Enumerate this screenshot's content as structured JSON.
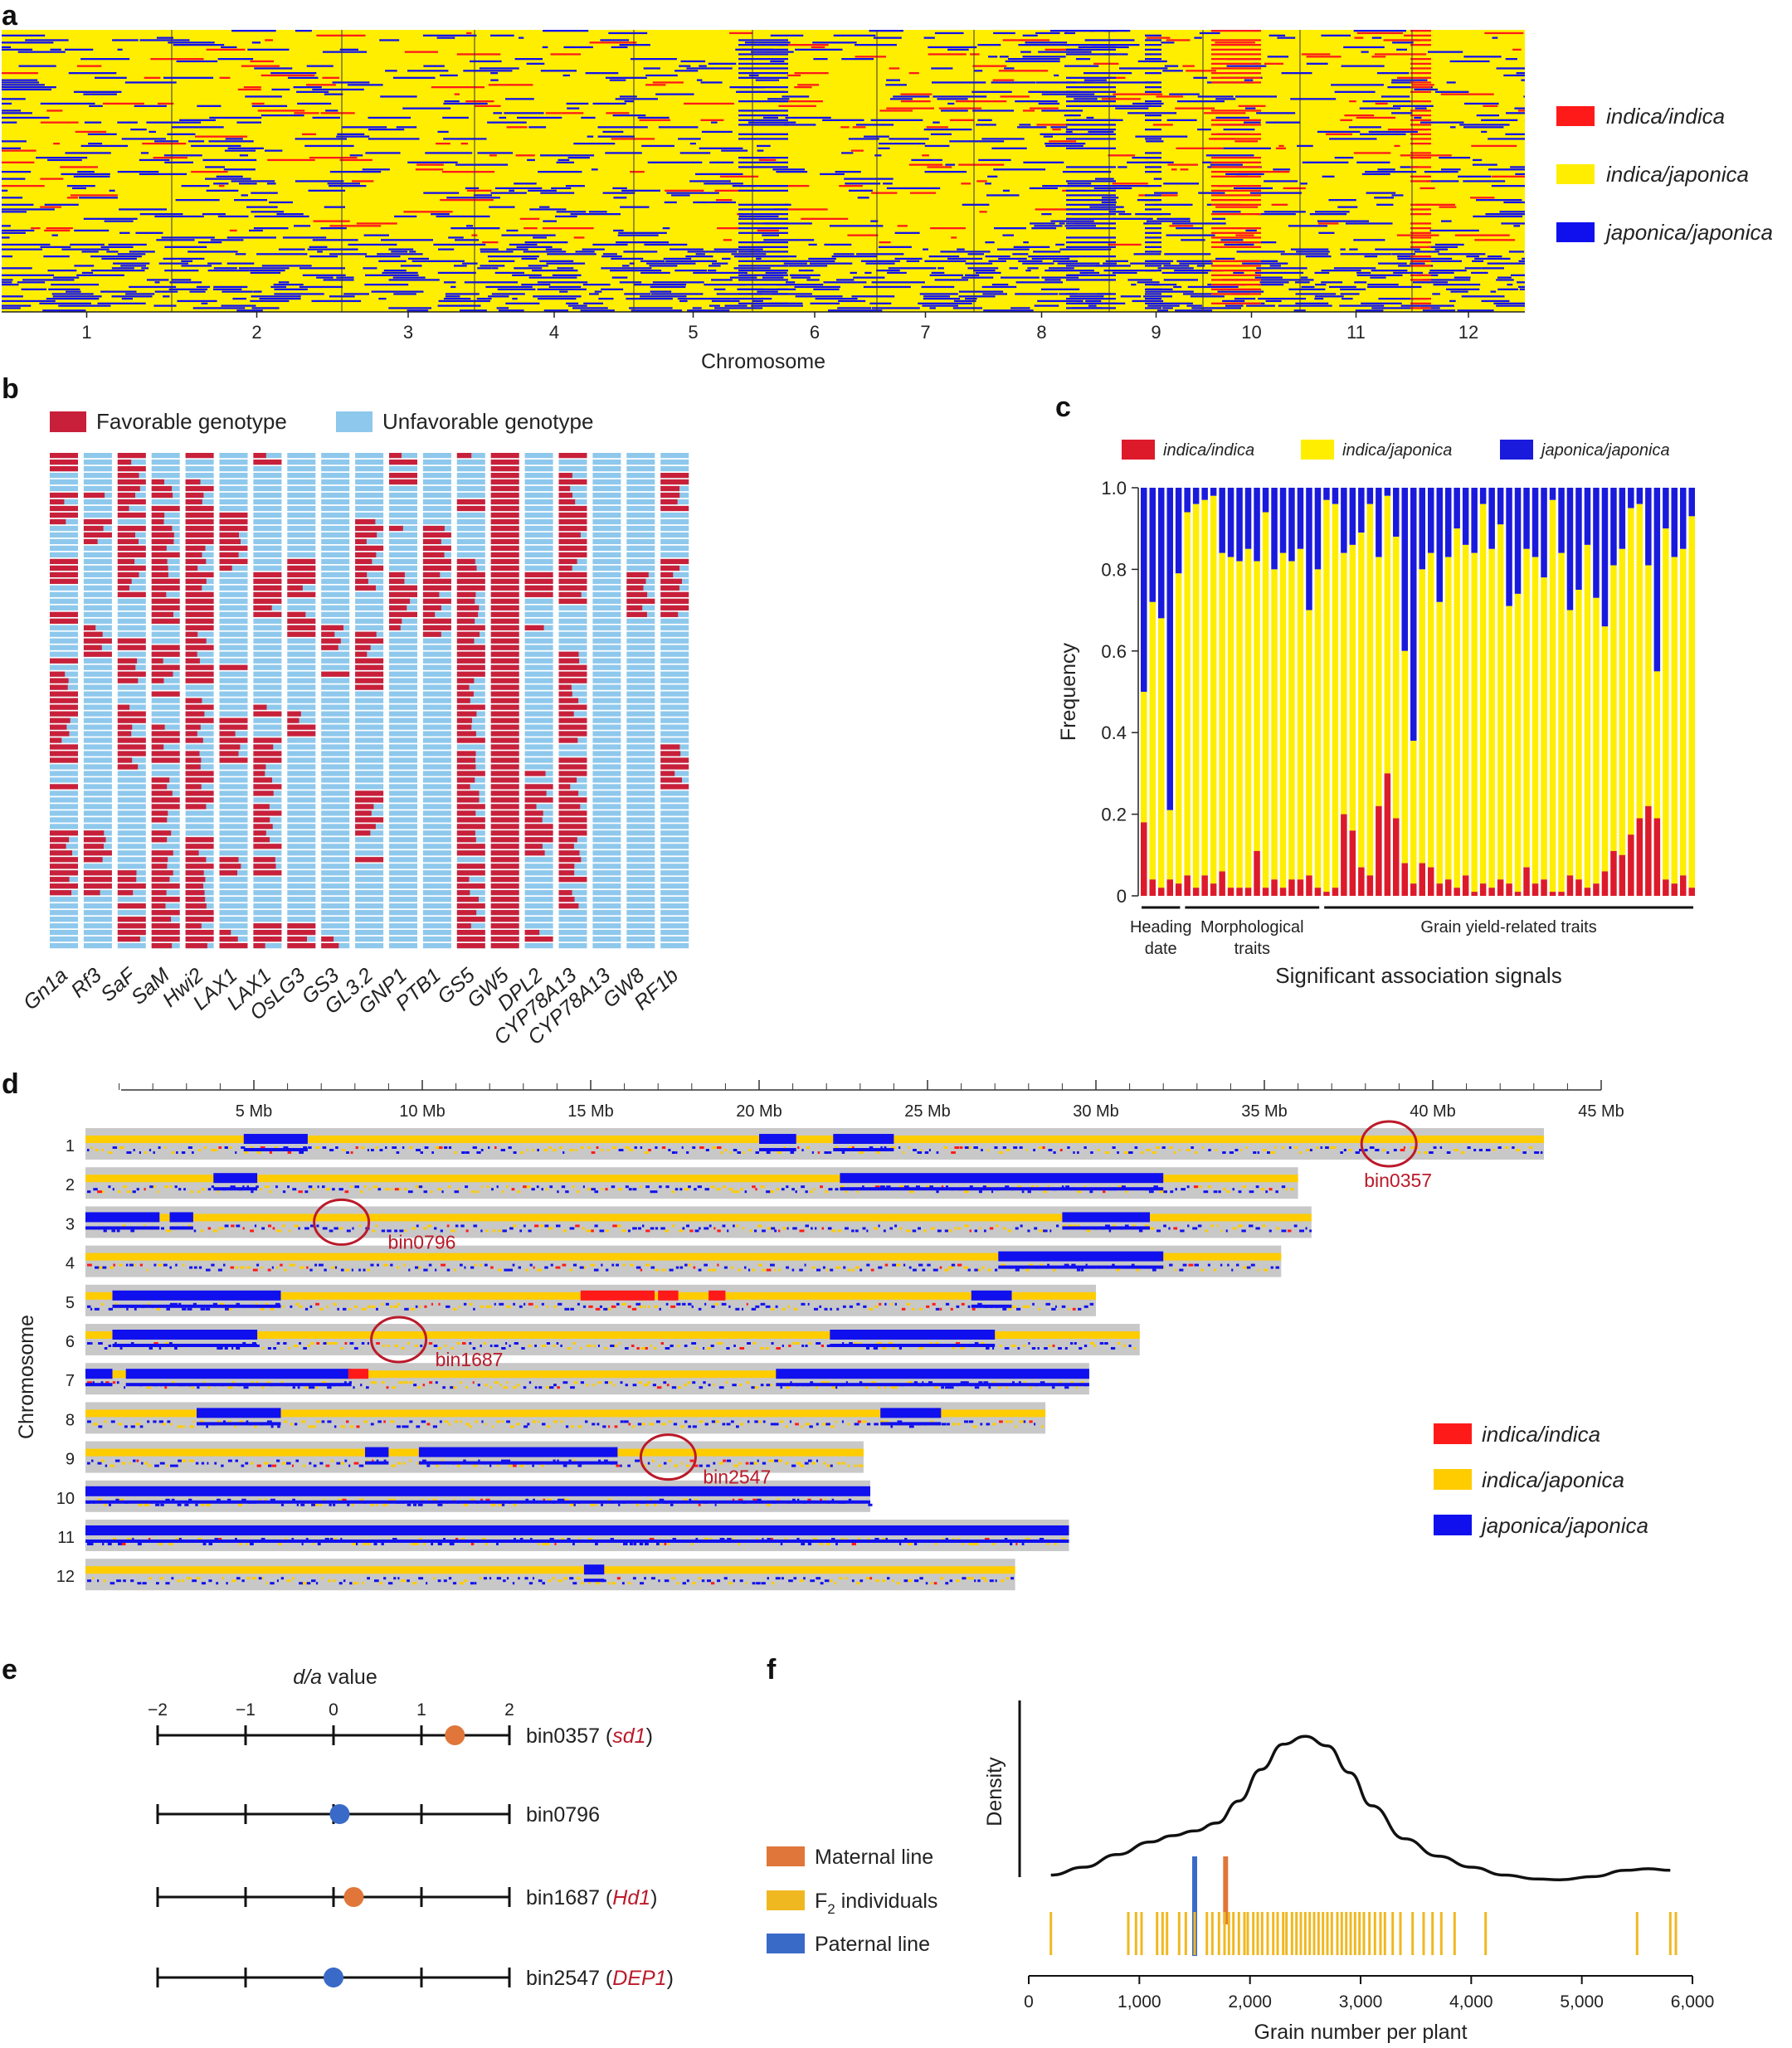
{
  "panel_letters": [
    "a",
    "b",
    "c",
    "d",
    "e",
    "f"
  ],
  "colors": {
    "indica_indica": "#ff1a1a",
    "indica_japonica": "#ffee00",
    "japonica_japonica": "#1010ee",
    "favorable": "#c8203a",
    "unfavorable": "#8ec8ec",
    "bar_yellow": "#ffee00",
    "bar_red": "#dd1a2a",
    "bar_blue": "#1a1add",
    "d_background": "#c8c8c8",
    "d_yellow": "#ffcc00",
    "circle": "#bb1a2a",
    "maternal": "#e0763a",
    "f2": "#f0b820",
    "paternal": "#3a6ac8"
  },
  "legend_genotypes": [
    "indica/indica",
    "indica/japonica",
    "japonica/japonica"
  ],
  "chart_data": [
    {
      "panel": "a",
      "type": "heatmap",
      "xlabel": "Chromosome",
      "chromosomes": [
        "1",
        "2",
        "3",
        "4",
        "5",
        "6",
        "7",
        "8",
        "9",
        "10",
        "11",
        "12"
      ],
      "legend": [
        "indica/indica",
        "indica/japonica",
        "japonica/japonica"
      ]
    },
    {
      "panel": "b",
      "type": "heatmap",
      "legend": [
        "Favorable genotype",
        "Unfavorable genotype"
      ],
      "genes": [
        "Gn1a",
        "Rf3",
        "SaF",
        "SaM",
        "Hwi2",
        "LAX1",
        "LAX1",
        "OsLG3",
        "GS3",
        "GL3.2",
        "GNP1",
        "PTB1",
        "GS5",
        "GW5",
        "DPL2",
        "CYP78A13",
        "CYP78A13",
        "GW8",
        "RF1b"
      ]
    },
    {
      "panel": "c",
      "type": "bar",
      "ylabel": "Frequency",
      "xlabel": "Significant association signals",
      "ylim": [
        0,
        1.0
      ],
      "yticks": [
        "0",
        "0.2",
        "0.4",
        "0.6",
        "0.8",
        "1.0"
      ],
      "legend": [
        "indica/indica",
        "indica/japonica",
        "japonica/japonica"
      ],
      "groups": [
        {
          "label": "Heading date",
          "lines": [
            "Heading",
            "date"
          ],
          "count": 5
        },
        {
          "label": "Morphological traits",
          "lines": [
            "Morphological",
            "traits"
          ],
          "count": 16
        },
        {
          "label": "Grain yield-related traits",
          "lines": [
            "Grain yield-related traits"
          ],
          "count": 43
        }
      ],
      "red_values": [
        0.18,
        0.04,
        0.02,
        0.04,
        0.03,
        0.05,
        0.02,
        0.05,
        0.03,
        0.06,
        0.02,
        0.02,
        0.02,
        0.11,
        0.02,
        0.04,
        0.02,
        0.04,
        0.04,
        0.05,
        0.02,
        0.01,
        0.02,
        0.2,
        0.16,
        0.07,
        0.05,
        0.22,
        0.3,
        0.19,
        0.08,
        0.03,
        0.08,
        0.07,
        0.03,
        0.04,
        0.02,
        0.05,
        0.01,
        0.03,
        0.02,
        0.04,
        0.03,
        0.01,
        0.07,
        0.03,
        0.04,
        0.01,
        0.01,
        0.05,
        0.04,
        0.02,
        0.03,
        0.06,
        0.11,
        0.1,
        0.15,
        0.19,
        0.22,
        0.19,
        0.04,
        0.03,
        0.05,
        0.02
      ],
      "yellow_tops": [
        0.5,
        0.72,
        0.68,
        0.21,
        0.79,
        0.94,
        0.96,
        0.97,
        0.98,
        0.84,
        0.83,
        0.82,
        0.85,
        0.82,
        0.94,
        0.8,
        0.84,
        0.82,
        0.85,
        0.7,
        0.8,
        0.97,
        0.96,
        0.84,
        0.86,
        0.89,
        0.96,
        0.83,
        0.98,
        0.88,
        0.6,
        0.38,
        0.8,
        0.84,
        0.72,
        0.83,
        0.9,
        0.86,
        0.84,
        0.96,
        0.85,
        0.91,
        0.71,
        0.74,
        0.85,
        0.83,
        0.78,
        0.97,
        0.84,
        0.7,
        0.75,
        0.86,
        0.73,
        0.66,
        0.81,
        0.85,
        0.95,
        0.96,
        0.81,
        0.55,
        0.9,
        0.83,
        0.85,
        0.93
      ]
    },
    {
      "panel": "d",
      "type": "heatmap",
      "ylabel": "Chromosome",
      "xticks": [
        "5 Mb",
        "10 Mb",
        "15 Mb",
        "20 Mb",
        "25 Mb",
        "30 Mb",
        "35 Mb",
        "40 Mb",
        "45 Mb"
      ],
      "x_tick_values_mb": [
        5,
        10,
        15,
        20,
        25,
        30,
        35,
        40,
        45
      ],
      "chromosomes": [
        "1",
        "2",
        "3",
        "4",
        "5",
        "6",
        "7",
        "8",
        "9",
        "10",
        "11",
        "12"
      ],
      "lengths_mb": [
        43.3,
        36.0,
        36.4,
        35.5,
        30.0,
        31.3,
        29.8,
        28.5,
        23.1,
        23.3,
        29.2,
        27.6
      ],
      "top_blocks": [
        [
          [
            4.7,
            6.6,
            "b"
          ],
          [
            20.0,
            21.1,
            "b"
          ],
          [
            22.2,
            24.0,
            "b"
          ]
        ],
        [
          [
            3.8,
            5.1,
            "b"
          ],
          [
            22.4,
            32.0,
            "b"
          ]
        ],
        [
          [
            0,
            2.2,
            "b"
          ],
          [
            2.5,
            3.2,
            "b"
          ],
          [
            29.0,
            31.6,
            "b"
          ]
        ],
        [
          [
            27.1,
            32.0,
            "b"
          ]
        ],
        [
          [
            0.8,
            5.8,
            "b"
          ],
          [
            14.7,
            16.9,
            "r"
          ],
          [
            17.0,
            17.6,
            "r"
          ],
          [
            18.5,
            19.0,
            "r"
          ],
          [
            26.3,
            27.5,
            "b"
          ]
        ],
        [
          [
            0.8,
            5.1,
            "b"
          ],
          [
            22.1,
            27.0,
            "b"
          ]
        ],
        [
          [
            0,
            0.8,
            "b"
          ],
          [
            1.2,
            7.9,
            "b"
          ],
          [
            20.5,
            29.8,
            "b"
          ],
          [
            7.8,
            8.4,
            "r"
          ]
        ],
        [
          [
            3.3,
            5.8,
            "b"
          ],
          [
            23.6,
            25.4,
            "b"
          ]
        ],
        [
          [
            8.3,
            9.0,
            "b"
          ],
          [
            9.9,
            15.8,
            "b"
          ]
        ],
        [
          [
            0,
            23.3,
            "b"
          ]
        ],
        [
          [
            0,
            29.2,
            "b"
          ]
        ],
        [
          [
            14.8,
            15.4,
            "b"
          ]
        ]
      ],
      "annotations": [
        {
          "label": "bin0357",
          "chrom": 1,
          "pos_mb": 38.7
        },
        {
          "label": "bin0796",
          "chrom": 3,
          "pos_mb": 7.6
        },
        {
          "label": "bin1687",
          "chrom": 6,
          "pos_mb": 9.3
        },
        {
          "label": "bin2547",
          "chrom": 9,
          "pos_mb": 17.3
        }
      ],
      "legend": [
        "indica/indica",
        "indica/japonica",
        "japonica/japonica"
      ]
    },
    {
      "panel": "e",
      "type": "scatter",
      "title": "d/a value",
      "title_italic": "d/a",
      "title_rest": " value",
      "xticks": [
        "−2",
        "−1",
        "0",
        "1",
        "2"
      ],
      "xlim": [
        -2,
        2
      ],
      "points": [
        {
          "bin": "bin0357",
          "gene": "sd1",
          "value": 1.38,
          "color": "orange"
        },
        {
          "bin": "bin0796",
          "gene": "",
          "value": 0.07,
          "color": "blue"
        },
        {
          "bin": "bin1687",
          "gene": "Hd1",
          "value": 0.23,
          "color": "orange"
        },
        {
          "bin": "bin2547",
          "gene": "DEP1",
          "value": 0.0,
          "color": "blue"
        }
      ]
    },
    {
      "panel": "f",
      "type": "line",
      "ylabel": "Density",
      "xlabel": "Grain number per plant",
      "xticks": [
        "0",
        "1,000",
        "2,000",
        "3,000",
        "4,000",
        "5,000",
        "6,000"
      ],
      "xlim": [
        0,
        6000
      ],
      "density_curve": {
        "x": [
          200,
          500,
          800,
          1100,
          1300,
          1500,
          1700,
          1900,
          2100,
          2300,
          2500,
          2700,
          2900,
          3100,
          3400,
          3700,
          4000,
          4300,
          4600,
          4800,
          5100,
          5400,
          5600,
          5800
        ],
        "y": [
          0.05,
          0.1,
          0.18,
          0.26,
          0.3,
          0.33,
          0.38,
          0.52,
          0.72,
          0.88,
          0.93,
          0.87,
          0.7,
          0.49,
          0.28,
          0.17,
          0.1,
          0.05,
          0.025,
          0.02,
          0.04,
          0.08,
          0.09,
          0.08
        ]
      },
      "maternal_line": 1780,
      "paternal_line": 1500,
      "f2_values": [
        200,
        900,
        970,
        1020,
        1160,
        1210,
        1250,
        1360,
        1420,
        1500,
        1610,
        1660,
        1720,
        1770,
        1810,
        1850,
        1900,
        1950,
        1980,
        2030,
        2070,
        2110,
        2160,
        2210,
        2250,
        2300,
        2330,
        2380,
        2420,
        2460,
        2500,
        2540,
        2580,
        2620,
        2660,
        2700,
        2740,
        2790,
        2830,
        2870,
        2910,
        2950,
        2990,
        3030,
        3080,
        3130,
        3180,
        3220,
        3290,
        3360,
        3470,
        3570,
        3650,
        3730,
        3850,
        4130,
        5500,
        5800,
        5850
      ],
      "legend": [
        {
          "label": "Maternal line",
          "key": "maternal"
        },
        {
          "label": "F",
          "sub": "2",
          "rest": " individuals",
          "key": "f2"
        },
        {
          "label": "Paternal line",
          "key": "paternal"
        }
      ]
    }
  ]
}
